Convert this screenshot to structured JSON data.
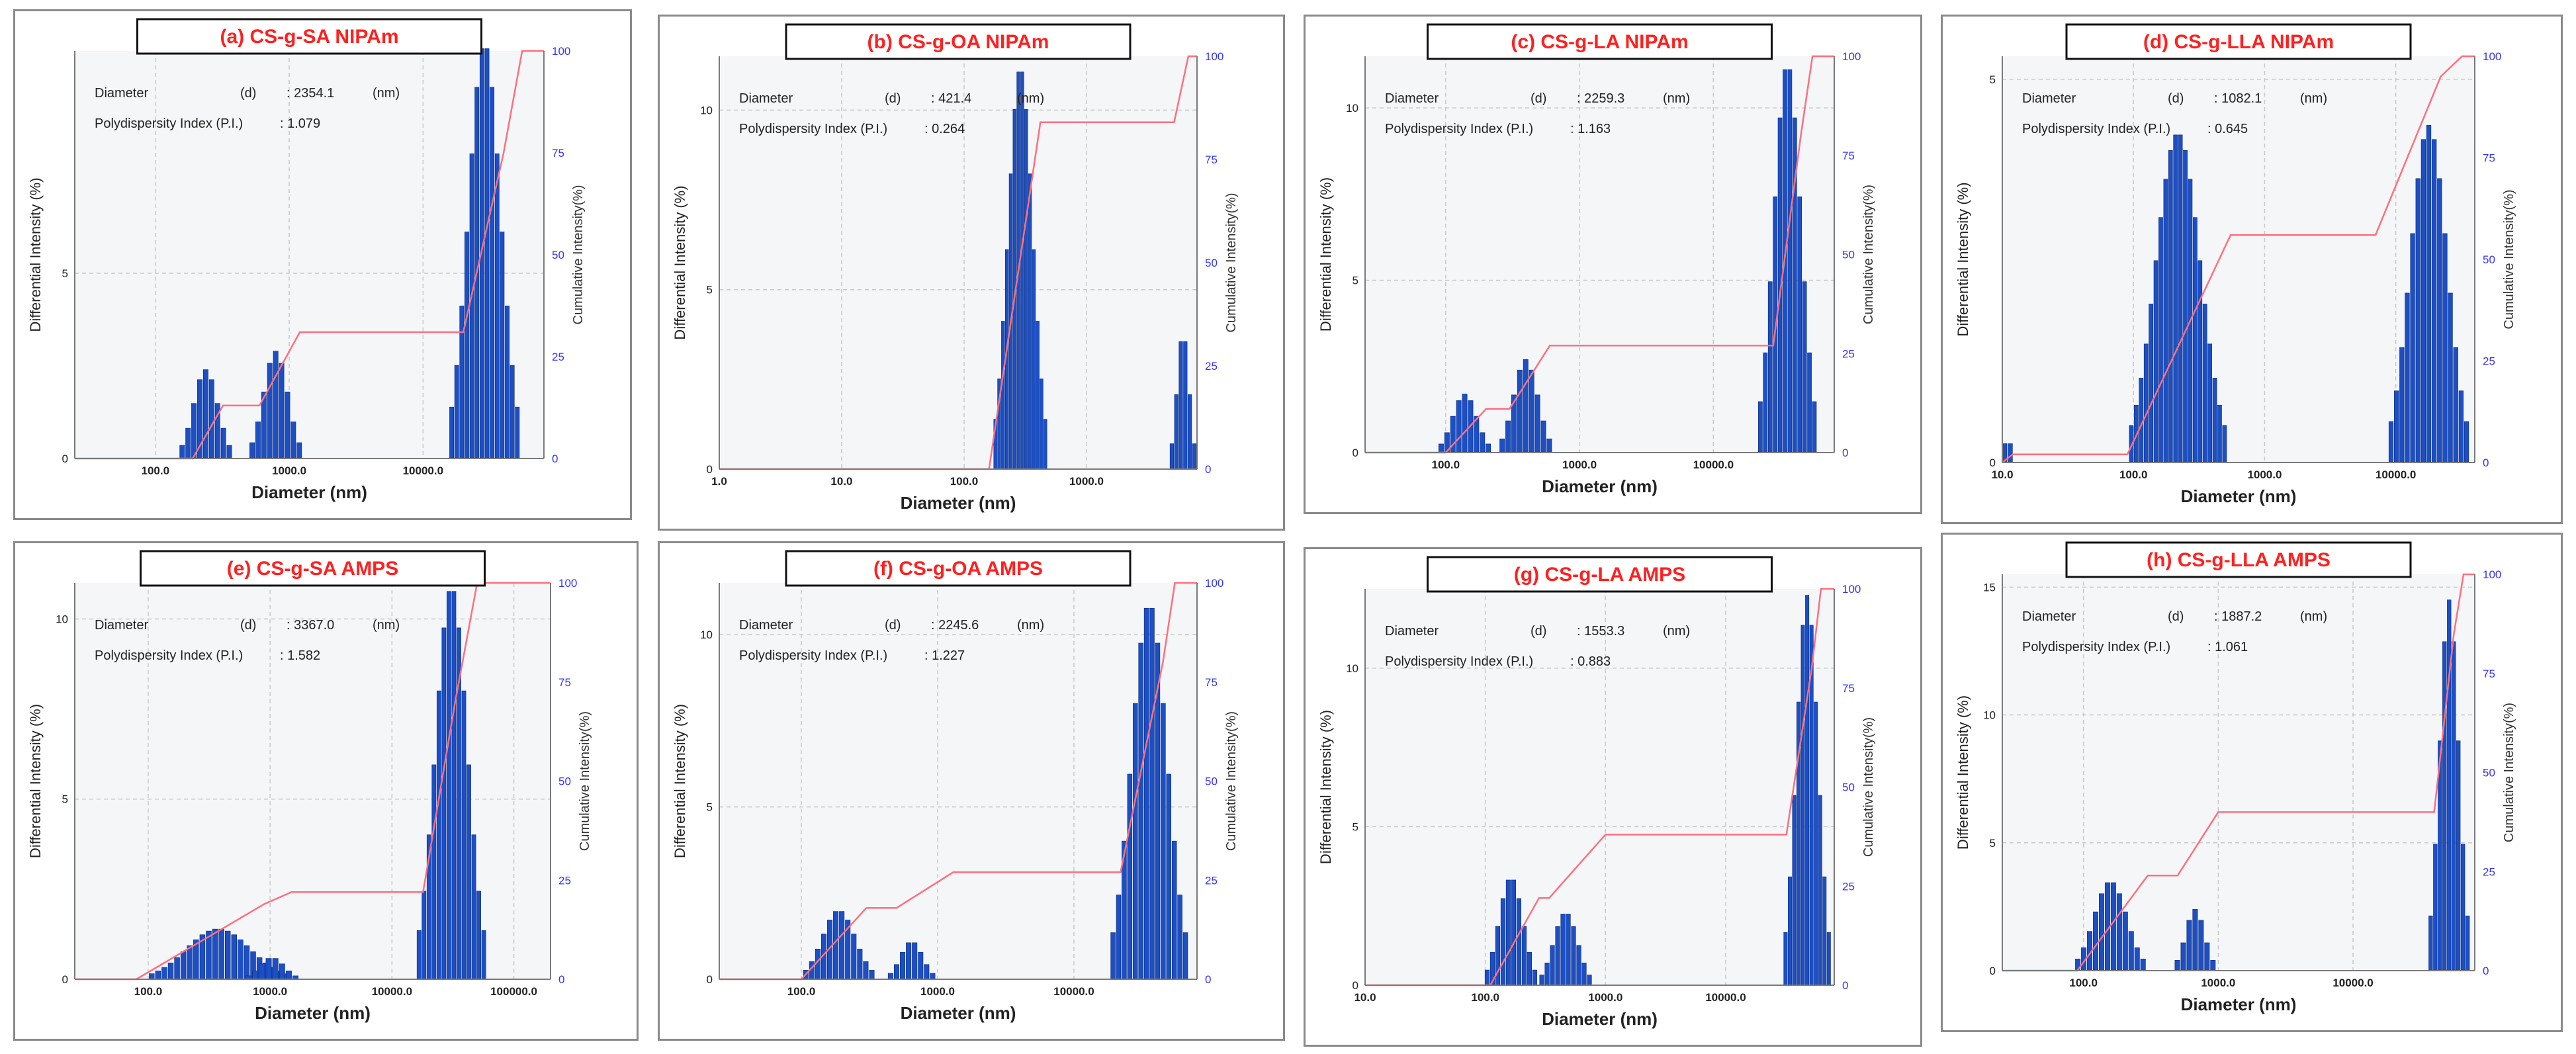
{
  "chart_data": [
    {
      "type": "bar",
      "title": "(a) CS-g-SA NIPAm",
      "xlabel": "Diameter (nm)",
      "ylabel": "Differential Intensity (%)",
      "y2label": "Cumulative Intensity(%)",
      "x_scale": "log",
      "xlim": [
        25,
        80000
      ],
      "x_ticks": [
        {
          "v": 100,
          "label": "100.0"
        },
        {
          "v": 1000,
          "label": "1000.0"
        },
        {
          "v": 10000,
          "label": "10000.0"
        }
      ],
      "ylim": [
        0,
        11
      ],
      "y_ticks": [
        0,
        5
      ],
      "y2_ticks": [
        0,
        25,
        50,
        75,
        100
      ],
      "info": {
        "diameter_label": "Diameter",
        "d_label": "(d)",
        "diameter_value": ": 2354.1",
        "unit": "(nm)",
        "pi_label": "Polydispersity Index (P.I.)",
        "pi_value": ": 1.079"
      },
      "peaks": [
        {
          "center": 240,
          "sigma": 0.09,
          "height": 2.4,
          "n": 9
        },
        {
          "center": 800,
          "sigma": 0.09,
          "height": 2.9,
          "n": 9
        },
        {
          "center": 29000,
          "sigma": 0.12,
          "height": 11.2,
          "n": 14
        }
      ],
      "cumulative": [
        [
          25,
          0
        ],
        [
          190,
          0
        ],
        [
          320,
          13
        ],
        [
          600,
          13
        ],
        [
          1200,
          31
        ],
        [
          20000,
          31
        ],
        [
          40000,
          75
        ],
        [
          55000,
          100
        ],
        [
          80000,
          100
        ]
      ]
    },
    {
      "type": "bar",
      "title": "(b) CS-g-OA NIPAm",
      "xlabel": "Diameter (nm)",
      "ylabel": "Differential Intensity (%)",
      "y2label": "Cumulative Intensity(%)",
      "x_scale": "log",
      "xlim": [
        1,
        8000
      ],
      "x_ticks": [
        {
          "v": 1,
          "label": "1.0"
        },
        {
          "v": 10,
          "label": "10.0"
        },
        {
          "v": 100,
          "label": "100.0"
        },
        {
          "v": 1000,
          "label": "1000.0"
        }
      ],
      "ylim": [
        0,
        11.5
      ],
      "y_ticks": [
        0,
        5,
        10
      ],
      "y2_ticks": [
        0,
        25,
        50,
        75,
        100
      ],
      "info": {
        "diameter_label": "Diameter",
        "d_label": "(d)",
        "diameter_value": ": 421.4",
        "unit": "(nm)",
        "pi_label": "Polydispersity Index (P.I.)",
        "pi_value": ": 0.264"
      },
      "peaks": [
        {
          "center": 290,
          "sigma": 0.1,
          "height": 11.2,
          "n": 14
        },
        {
          "center": 6200,
          "sigma": 0.05,
          "height": 3.8,
          "n": 6
        }
      ],
      "cumulative": [
        [
          1,
          0
        ],
        [
          160,
          0
        ],
        [
          420,
          84
        ],
        [
          5200,
          84
        ],
        [
          6800,
          100
        ],
        [
          8000,
          100
        ]
      ]
    },
    {
      "type": "bar",
      "title": "(c) CS-g-LA NIPAm",
      "xlabel": "Diameter (nm)",
      "ylabel": "Differential Intensity (%)",
      "y2label": "Cumulative Intensity(%)",
      "x_scale": "log",
      "xlim": [
        25,
        80000
      ],
      "x_ticks": [
        {
          "v": 100,
          "label": "100.0"
        },
        {
          "v": 1000,
          "label": "1000.0"
        },
        {
          "v": 10000,
          "label": "10000.0"
        }
      ],
      "ylim": [
        0,
        11.5
      ],
      "y_ticks": [
        0,
        5,
        10
      ],
      "y2_ticks": [
        0,
        25,
        50,
        75,
        100
      ],
      "info": {
        "diameter_label": "Diameter",
        "d_label": "(d)",
        "diameter_value": ": 2259.3",
        "unit": "(nm)",
        "pi_label": "Polydispersity Index (P.I.)",
        "pi_value": ": 1.163"
      },
      "peaks": [
        {
          "center": 140,
          "sigma": 0.09,
          "height": 1.7,
          "n": 9
        },
        {
          "center": 400,
          "sigma": 0.09,
          "height": 2.7,
          "n": 9
        },
        {
          "center": 36000,
          "sigma": 0.1,
          "height": 11.3,
          "n": 12
        }
      ],
      "cumulative": [
        [
          25,
          0
        ],
        [
          100,
          0
        ],
        [
          200,
          11
        ],
        [
          300,
          11
        ],
        [
          600,
          27
        ],
        [
          28000,
          27
        ],
        [
          45000,
          80
        ],
        [
          55000,
          100
        ],
        [
          80000,
          100
        ]
      ]
    },
    {
      "type": "bar",
      "title": "(d) CS-g-LLA NIPAm",
      "xlabel": "Diameter (nm)",
      "ylabel": "Differential Intensity (%)",
      "y2label": "Cumulative Intensity(%)",
      "x_scale": "log",
      "xlim": [
        10,
        40000
      ],
      "x_ticks": [
        {
          "v": 10,
          "label": "10.0"
        },
        {
          "v": 100,
          "label": "100.0"
        },
        {
          "v": 1000,
          "label": "1000.0"
        },
        {
          "v": 10000,
          "label": "10000.0"
        }
      ],
      "ylim": [
        0,
        5.3
      ],
      "y_ticks": [
        0,
        5
      ],
      "y2_ticks": [
        0,
        25,
        50,
        75,
        100
      ],
      "info": {
        "diameter_label": "Diameter",
        "d_label": "(d)",
        "diameter_value": ": 1082.1",
        "unit": "(nm)",
        "pi_label": "Polydispersity Index (P.I.)",
        "pi_value": ": 0.645"
      },
      "peaks": [
        {
          "center": 11,
          "sigma": 0.02,
          "height": 0.45,
          "n": 2
        },
        {
          "center": 220,
          "sigma": 0.17,
          "height": 4.3,
          "n": 20
        },
        {
          "center": 18000,
          "sigma": 0.14,
          "height": 4.4,
          "n": 15
        }
      ],
      "cumulative": [
        [
          10,
          0
        ],
        [
          12,
          2
        ],
        [
          90,
          2
        ],
        [
          550,
          56
        ],
        [
          7000,
          56
        ],
        [
          22000,
          95
        ],
        [
          32000,
          100
        ],
        [
          40000,
          100
        ]
      ]
    },
    {
      "type": "bar",
      "title": "(e) CS-g-SA AMPS",
      "xlabel": "Diameter (nm)",
      "ylabel": "Differential Intensity (%)",
      "y2label": "Cumulative Intensity(%)",
      "x_scale": "log",
      "xlim": [
        25,
        200000
      ],
      "x_ticks": [
        {
          "v": 100,
          "label": "100.0"
        },
        {
          "v": 1000,
          "label": "1000.0"
        },
        {
          "v": 10000,
          "label": "10000.0"
        },
        {
          "v": 100000,
          "label": "100000.0"
        }
      ],
      "ylim": [
        0,
        11
      ],
      "y_ticks": [
        0,
        5,
        10
      ],
      "y2_ticks": [
        0,
        25,
        50,
        75,
        100
      ],
      "info": {
        "diameter_label": "Diameter",
        "d_label": "(d)",
        "diameter_value": ": 3367.0",
        "unit": "(nm)",
        "pi_label": "Polydispersity Index (P.I.)",
        "pi_value": ": 1.582"
      },
      "peaks": [
        {
          "center": 380,
          "sigma": 0.26,
          "height": 1.4,
          "n": 22
        },
        {
          "center": 1050,
          "sigma": 0.1,
          "height": 0.6,
          "n": 8
        },
        {
          "center": 31000,
          "sigma": 0.13,
          "height": 10.9,
          "n": 14
        }
      ],
      "cumulative": [
        [
          25,
          0
        ],
        [
          80,
          0
        ],
        [
          900,
          19
        ],
        [
          1500,
          22
        ],
        [
          18000,
          22
        ],
        [
          33000,
          70
        ],
        [
          50000,
          100
        ],
        [
          200000,
          100
        ]
      ]
    },
    {
      "type": "bar",
      "title": "(f) CS-g-OA AMPS",
      "xlabel": "Diameter (nm)",
      "ylabel": "Differential Intensity (%)",
      "y2label": "Cumulative Intensity(%)",
      "x_scale": "log",
      "xlim": [
        25,
        80000
      ],
      "x_ticks": [
        {
          "v": 100,
          "label": "100.0"
        },
        {
          "v": 1000,
          "label": "1000.0"
        },
        {
          "v": 10000,
          "label": "10000.0"
        }
      ],
      "ylim": [
        0,
        11.5
      ],
      "y_ticks": [
        0,
        5,
        10
      ],
      "y2_ticks": [
        0,
        25,
        50,
        75,
        100
      ],
      "info": {
        "diameter_label": "Diameter",
        "d_label": "(d)",
        "diameter_value": ": 2245.6",
        "unit": "(nm)",
        "pi_label": "Polydispersity Index (P.I.)",
        "pi_value": ": 1.227"
      },
      "peaks": [
        {
          "center": 190,
          "sigma": 0.12,
          "height": 2.0,
          "n": 12
        },
        {
          "center": 650,
          "sigma": 0.08,
          "height": 1.1,
          "n": 8
        },
        {
          "center": 36000,
          "sigma": 0.13,
          "height": 10.9,
          "n": 14
        }
      ],
      "cumulative": [
        [
          25,
          0
        ],
        [
          100,
          0
        ],
        [
          300,
          18
        ],
        [
          500,
          18
        ],
        [
          1300,
          27
        ],
        [
          22000,
          27
        ],
        [
          45000,
          80
        ],
        [
          55000,
          100
        ],
        [
          80000,
          100
        ]
      ]
    },
    {
      "type": "bar",
      "title": "(g) CS-g-LA AMPS",
      "xlabel": "Diameter (nm)",
      "ylabel": "Differential Intensity (%)",
      "y2label": "Cumulative Intensity(%)",
      "x_scale": "log",
      "xlim": [
        10,
        80000
      ],
      "x_ticks": [
        {
          "v": 10,
          "label": "10.0"
        },
        {
          "v": 100,
          "label": "100.0"
        },
        {
          "v": 1000,
          "label": "1000.0"
        },
        {
          "v": 10000,
          "label": "10000.0"
        }
      ],
      "ylim": [
        0,
        12.5
      ],
      "y_ticks": [
        0,
        5,
        10
      ],
      "y2_ticks": [
        0,
        25,
        50,
        75,
        100
      ],
      "info": {
        "diameter_label": "Diameter",
        "d_label": "(d)",
        "diameter_value": ": 1553.3",
        "unit": "(nm)",
        "pi_label": "Polydispersity Index (P.I.)",
        "pi_value": ": 0.883"
      },
      "peaks": [
        {
          "center": 165,
          "sigma": 0.1,
          "height": 3.4,
          "n": 10
        },
        {
          "center": 470,
          "sigma": 0.1,
          "height": 2.3,
          "n": 10
        },
        {
          "center": 48000,
          "sigma": 0.09,
          "height": 12.3,
          "n": 11
        }
      ],
      "cumulative": [
        [
          10,
          0
        ],
        [
          110,
          0
        ],
        [
          280,
          22
        ],
        [
          340,
          22
        ],
        [
          1000,
          38
        ],
        [
          32000,
          38
        ],
        [
          52000,
          80
        ],
        [
          62000,
          100
        ],
        [
          80000,
          100
        ]
      ]
    },
    {
      "type": "bar",
      "title": "(h) CS-g-LLA AMPS",
      "xlabel": "Diameter (nm)",
      "ylabel": "Differential Intensity (%)",
      "y2label": "Cumulative Intensity(%)",
      "x_scale": "log",
      "xlim": [
        25,
        80000
      ],
      "x_ticks": [
        {
          "v": 100,
          "label": "100.0"
        },
        {
          "v": 1000,
          "label": "1000.0"
        },
        {
          "v": 10000,
          "label": "10000.0"
        }
      ],
      "ylim": [
        0,
        15.5
      ],
      "y_ticks": [
        0,
        5,
        10,
        15
      ],
      "y2_ticks": [
        0,
        25,
        50,
        75,
        100
      ],
      "info": {
        "diameter_label": "Diameter",
        "d_label": "(d)",
        "diameter_value": ": 1887.2",
        "unit": "(nm)",
        "pi_label": "Polydispersity Index (P.I.)",
        "pi_value": ": 1.061"
      },
      "peaks": [
        {
          "center": 160,
          "sigma": 0.12,
          "height": 3.5,
          "n": 12
        },
        {
          "center": 680,
          "sigma": 0.07,
          "height": 2.4,
          "n": 7
        },
        {
          "center": 52000,
          "sigma": 0.07,
          "height": 14.5,
          "n": 9
        }
      ],
      "cumulative": [
        [
          25,
          0
        ],
        [
          90,
          0
        ],
        [
          300,
          24
        ],
        [
          500,
          24
        ],
        [
          1000,
          40
        ],
        [
          40000,
          40
        ],
        [
          56000,
          85
        ],
        [
          66000,
          100
        ],
        [
          80000,
          100
        ]
      ]
    }
  ]
}
